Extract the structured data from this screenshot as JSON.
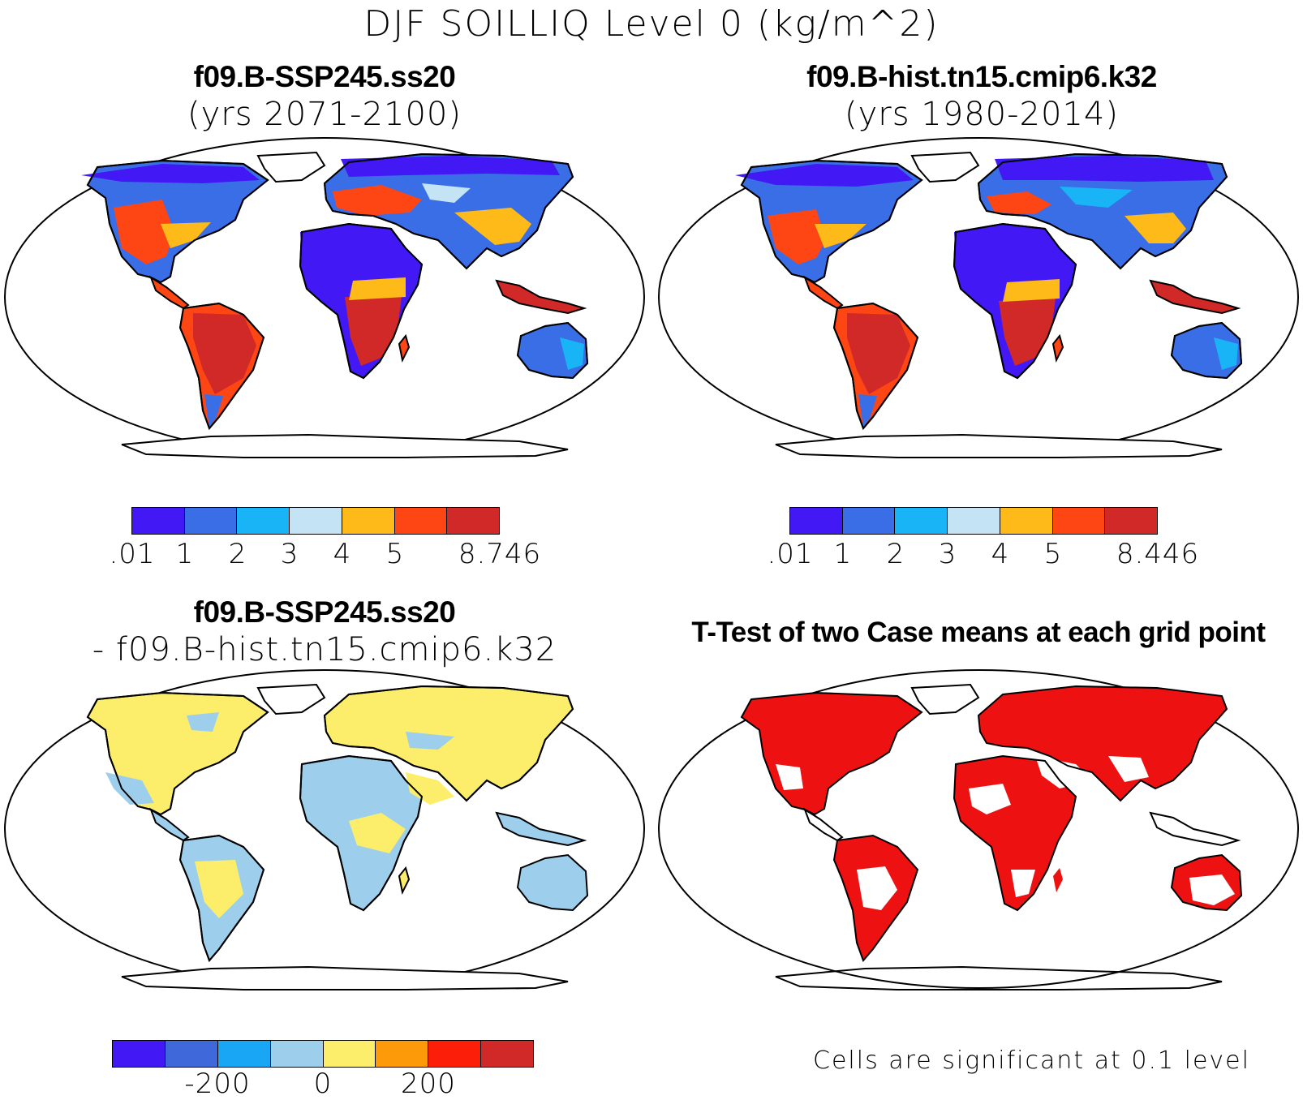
{
  "title": "DJF SOILLIQ Level 0 (kg/m^2)",
  "panels": {
    "top_left": {
      "title": "f09.B-SSP245.ss20",
      "subtitle": "(yrs 2071-2100)",
      "colorbar": {
        "colors": [
          "#4218f5",
          "#3a6ee6",
          "#19b4f5",
          "#c4e4f5",
          "#fdba19",
          "#fd4614",
          "#d12828"
        ],
        "labels": [
          ".01",
          "1",
          "2",
          "3",
          "4",
          "5",
          "8.746"
        ]
      }
    },
    "top_right": {
      "title": "f09.B-hist.tn15.cmip6.k32",
      "subtitle": "(yrs 1980-2014)",
      "colorbar": {
        "colors": [
          "#4218f5",
          "#3a6ee6",
          "#19b4f5",
          "#c4e4f5",
          "#fdba19",
          "#fd4614",
          "#d12828"
        ],
        "labels": [
          ".01",
          "1",
          "2",
          "3",
          "4",
          "5",
          "8.446"
        ]
      }
    },
    "bottom_left": {
      "title": "f09.B-SSP245.ss20",
      "subtitle": "- f09.B-hist.tn15.cmip6.k32",
      "colorbar": {
        "colors": [
          "#4218f5",
          "#3f68db",
          "#19a6f5",
          "#9dcfec",
          "#fcee6a",
          "#fd9a0a",
          "#fd1e0a",
          "#d12828"
        ],
        "labels": [
          "-200",
          "0",
          "200"
        ]
      }
    },
    "bottom_right": {
      "title": "T-Test of two Case means at each grid point",
      "note": "Cells are significant at 0.1 level",
      "significant_color": "#ee1111"
    }
  },
  "map_colors": {
    "ocean": "#ffffff",
    "land_outline": "#000000",
    "desert": "#4218f5",
    "arid": "#3a6ee6",
    "dry": "#19b4f5",
    "moderate": "#c4e4f5",
    "moist": "#fdba19",
    "wet": "#fd4614",
    "very_wet": "#d12828",
    "diff_pos": "#fcee6a",
    "diff_neg": "#9dcfec"
  }
}
